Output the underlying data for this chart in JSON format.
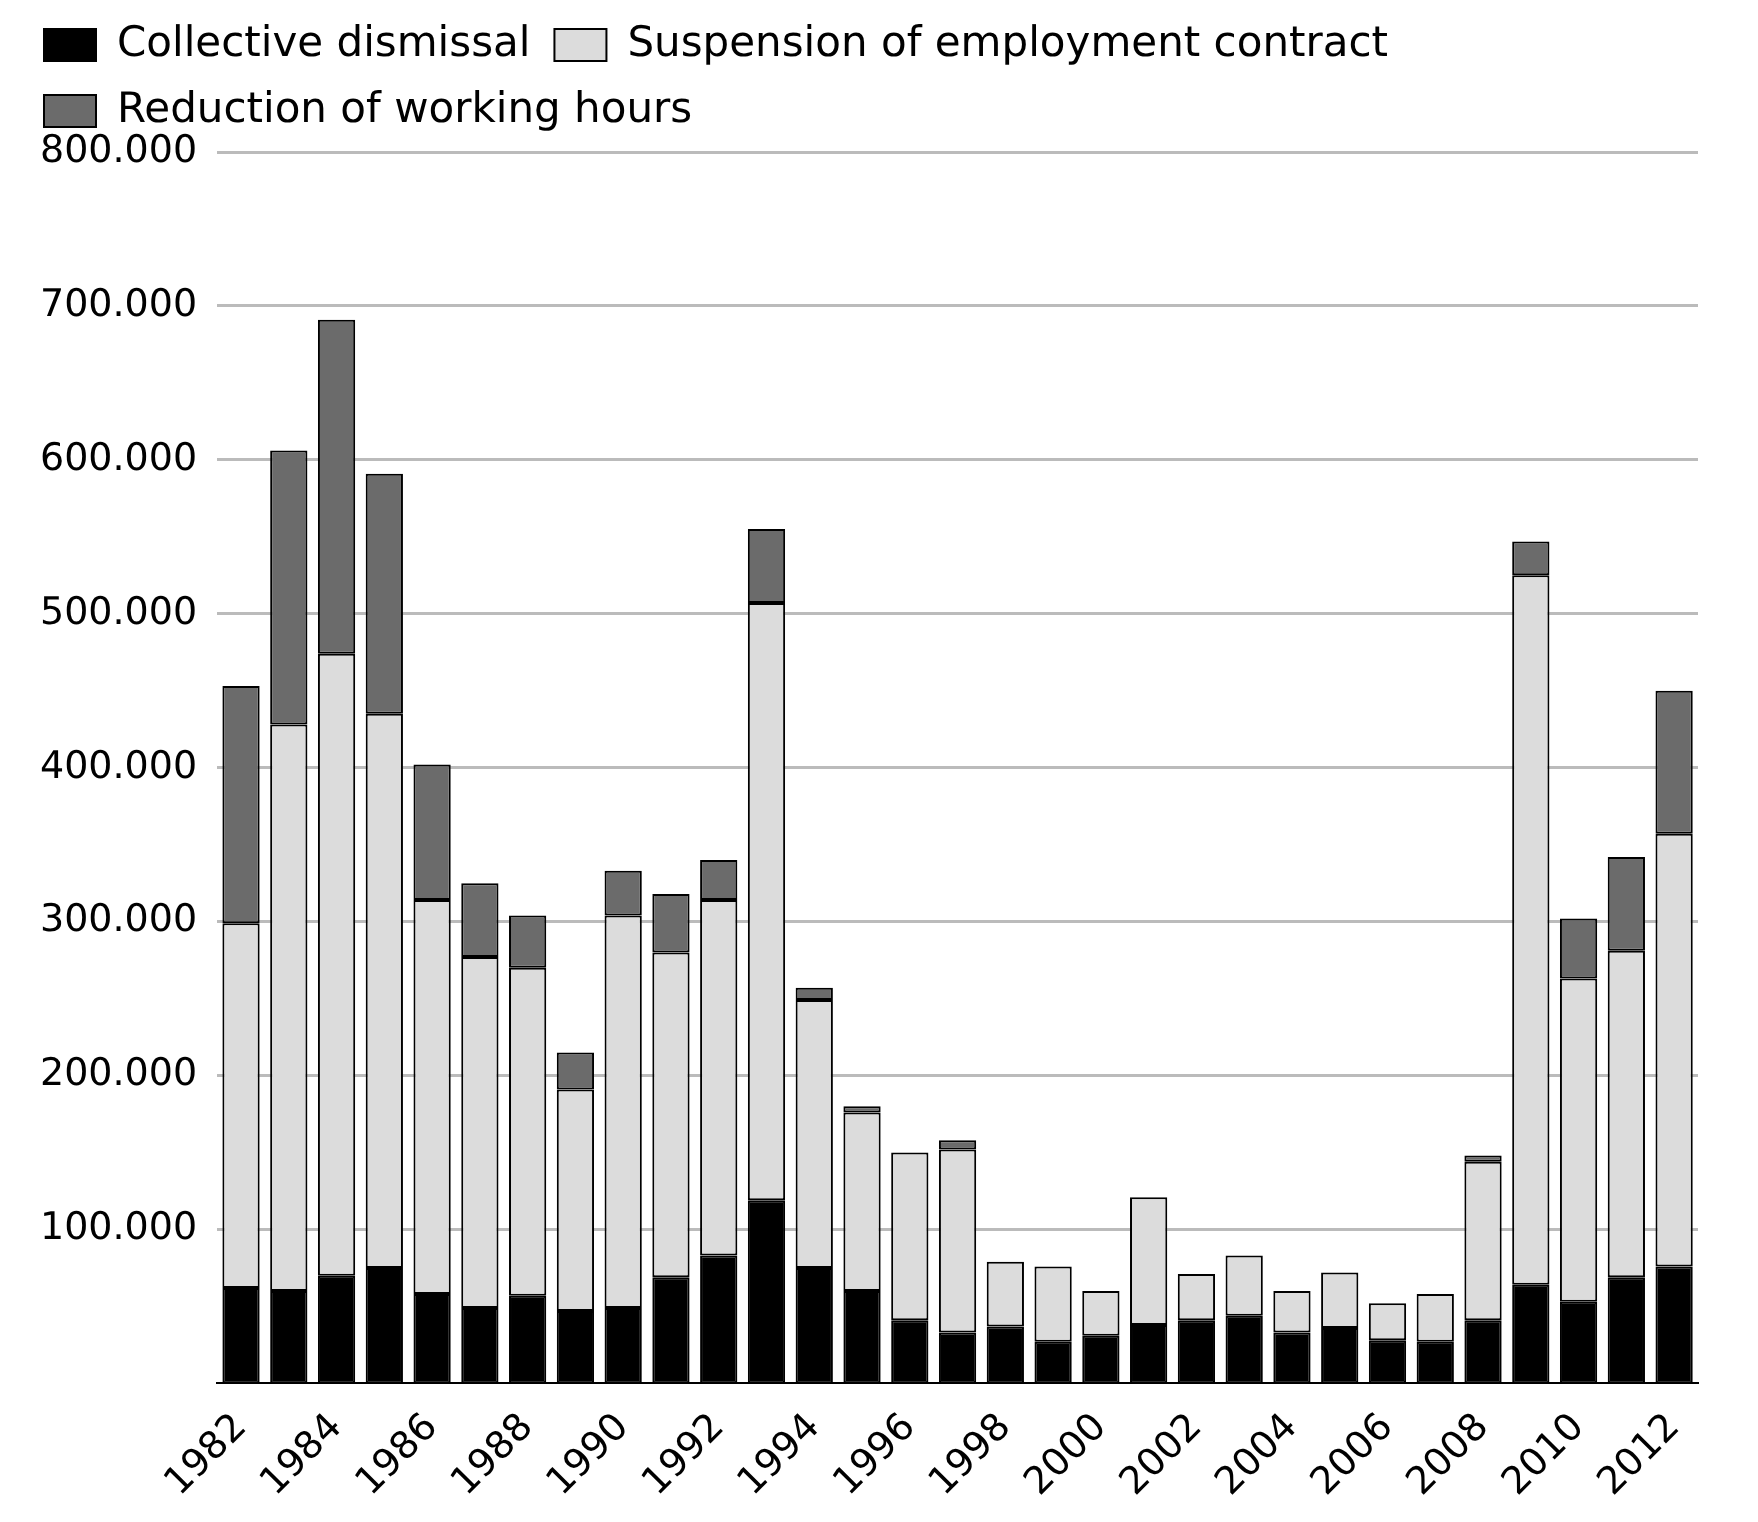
{
  "chart_data": {
    "type": "bar",
    "stacked": true,
    "categories": [
      "1982",
      null,
      "1984",
      null,
      "1986",
      null,
      "1988",
      null,
      "1990",
      null,
      "1992",
      null,
      "1994",
      null,
      "1996",
      null,
      "1998",
      null,
      "2000",
      null,
      "2002",
      null,
      "2004",
      null,
      "2006",
      null,
      "2008",
      null,
      "2010",
      null,
      "2012"
    ],
    "series": [
      {
        "name": "Collective dismissal",
        "color": "#000000",
        "values": [
          62000,
          60000,
          70000,
          75000,
          58000,
          49000,
          57000,
          47000,
          49000,
          69000,
          83000,
          119000,
          75000,
          60000,
          41000,
          33000,
          37000,
          27000,
          31000,
          38000,
          41000,
          44000,
          33000,
          36000,
          28000,
          27000,
          41000,
          64000,
          53000,
          69000,
          76000
        ]
      },
      {
        "name": "Suspension of employment contract",
        "color": "#dcdcdc",
        "values": [
          237000,
          368000,
          404000,
          360000,
          256000,
          228000,
          213000,
          144000,
          255000,
          211000,
          231000,
          388000,
          174000,
          116000,
          109000,
          119000,
          42000,
          49000,
          29000,
          83000,
          30000,
          39000,
          27000,
          36000,
          24000,
          31000,
          103000,
          461000,
          210000,
          212000,
          281000
        ]
      },
      {
        "name": "Reduction of working hours",
        "color": "#6b6b6b",
        "values": [
          154000,
          178000,
          217000,
          156000,
          88000,
          48000,
          34000,
          24000,
          29000,
          38000,
          26000,
          48000,
          8000,
          4000,
          0,
          6000,
          0,
          0,
          0,
          0,
          0,
          0,
          0,
          0,
          0,
          0,
          4000,
          22000,
          39000,
          61000,
          93000
        ]
      }
    ],
    "ylim": [
      0,
      800000
    ],
    "yticks": [
      {
        "value": 100000,
        "label": "100.000"
      },
      {
        "value": 200000,
        "label": "200.000"
      },
      {
        "value": 300000,
        "label": "300.000"
      },
      {
        "value": 400000,
        "label": "400.000"
      },
      {
        "value": 500000,
        "label": "500.000"
      },
      {
        "value": 600000,
        "label": "600.000"
      },
      {
        "value": 700000,
        "label": "700.000"
      },
      {
        "value": 800000,
        "label": "800.000"
      }
    ],
    "grid": "y",
    "legend": "top"
  }
}
